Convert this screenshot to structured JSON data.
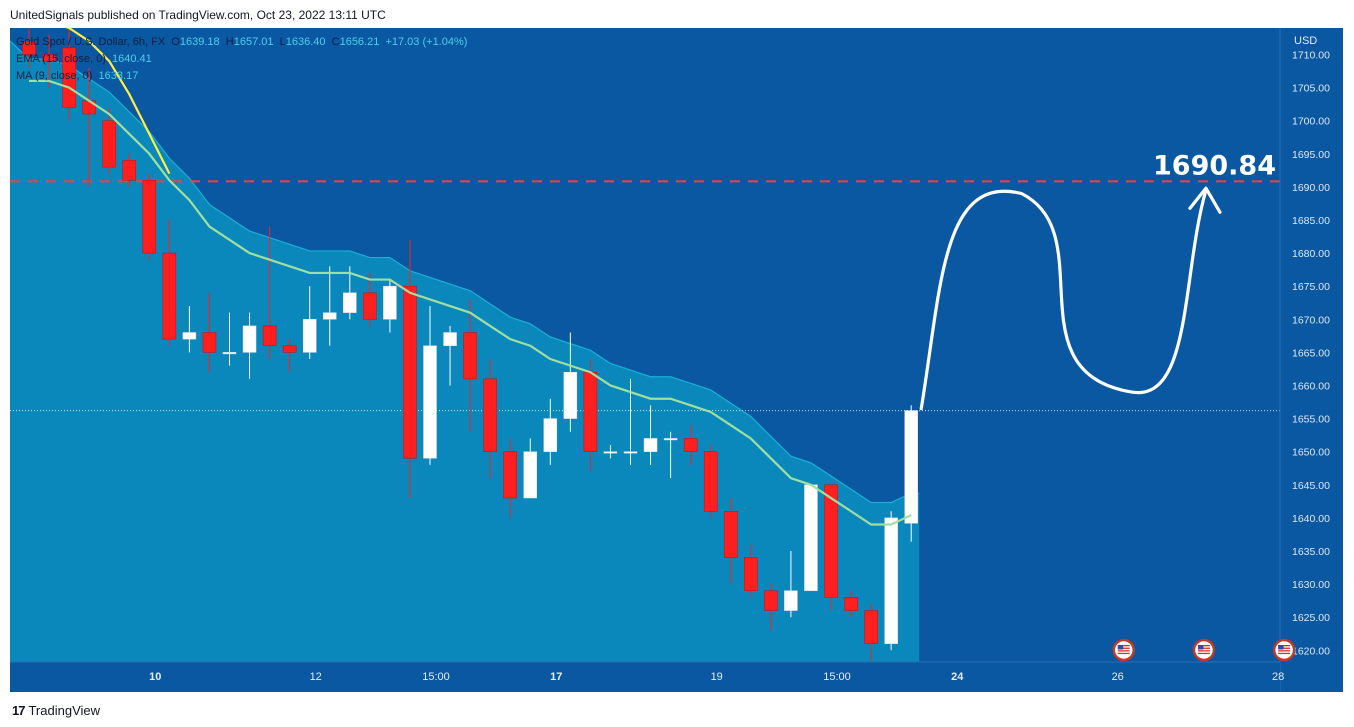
{
  "header": {
    "published_text": "UnitedSignals published on TradingView.com, Oct 23, 2022 13:11 UTC"
  },
  "legend": {
    "symbol": "Gold Spot / U.S. Dollar, 6h, FX",
    "o_label": "O",
    "o_value": "1639.18",
    "h_label": "H",
    "h_value": "1657.01",
    "l_label": "L",
    "l_value": "1636.40",
    "c_label": "C",
    "c_value": "1656.21",
    "change": "+17.03 (+1.04%)",
    "ema_label": "EMA (15, close, 0)",
    "ema_value": "1640.41",
    "ma_label": "MA (9, close, 0)",
    "ma_value": "1633.17"
  },
  "axis": {
    "currency": "USD"
  },
  "footer": {
    "brand": "TradingView",
    "logo_mark": "17"
  },
  "colors": {
    "background": "#0a57a2",
    "area_fill": "#0a8fc0",
    "bull": "#ffffff",
    "bear": "#ff1f1f",
    "ema": "#9fe0a0",
    "ma": "#ffee44",
    "target": "#ff3b3b"
  },
  "chart_data": {
    "type": "candlestick",
    "ylim": [
      1618,
      1714
    ],
    "y_ticks": [
      "1710.00",
      "1705.00",
      "1700.00",
      "1695.00",
      "1690.00",
      "1685.00",
      "1680.00",
      "1675.00",
      "1670.00",
      "1665.00",
      "1660.00",
      "1655.00",
      "1650.00",
      "1645.00",
      "1640.00",
      "1635.00",
      "1630.00",
      "1625.00",
      "1620.00"
    ],
    "x_ticks": [
      {
        "label": "10",
        "index": 6
      },
      {
        "label": "12",
        "index": 14
      },
      {
        "label": "15:00",
        "index": 20
      },
      {
        "label": "17",
        "index": 26
      },
      {
        "label": "19",
        "index": 34
      },
      {
        "label": "15:00",
        "index": 40
      },
      {
        "label": "24",
        "index": 46
      },
      {
        "label": "26",
        "index": 54
      },
      {
        "label": "28",
        "index": 62
      }
    ],
    "candles": [
      {
        "o": 1712,
        "h": 1714,
        "l": 1708,
        "c": 1710
      },
      {
        "o": 1710,
        "h": 1713,
        "l": 1705,
        "c": 1709
      },
      {
        "o": 1711,
        "h": 1714,
        "l": 1700,
        "c": 1702
      },
      {
        "o": 1703,
        "h": 1708,
        "l": 1690,
        "c": 1701
      },
      {
        "o": 1700,
        "h": 1702,
        "l": 1692,
        "c": 1693
      },
      {
        "o": 1694,
        "h": 1695,
        "l": 1690,
        "c": 1691
      },
      {
        "o": 1691,
        "h": 1692,
        "l": 1679,
        "c": 1680
      },
      {
        "o": 1680,
        "h": 1685,
        "l": 1666,
        "c": 1667
      },
      {
        "o": 1667,
        "h": 1672,
        "l": 1665,
        "c": 1668
      },
      {
        "o": 1668,
        "h": 1674,
        "l": 1662,
        "c": 1665
      },
      {
        "o": 1665,
        "h": 1671,
        "l": 1663,
        "c": 1665
      },
      {
        "o": 1665,
        "h": 1671,
        "l": 1661,
        "c": 1669
      },
      {
        "o": 1669,
        "h": 1684,
        "l": 1664,
        "c": 1666
      },
      {
        "o": 1666,
        "h": 1667,
        "l": 1662,
        "c": 1665
      },
      {
        "o": 1665,
        "h": 1675,
        "l": 1664,
        "c": 1670
      },
      {
        "o": 1670,
        "h": 1678,
        "l": 1666,
        "c": 1671
      },
      {
        "o": 1671,
        "h": 1678,
        "l": 1670,
        "c": 1674
      },
      {
        "o": 1674,
        "h": 1677,
        "l": 1669,
        "c": 1670
      },
      {
        "o": 1670,
        "h": 1676,
        "l": 1668,
        "c": 1675
      },
      {
        "o": 1675,
        "h": 1682,
        "l": 1643,
        "c": 1649
      },
      {
        "o": 1649,
        "h": 1672,
        "l": 1648,
        "c": 1666
      },
      {
        "o": 1666,
        "h": 1669,
        "l": 1660,
        "c": 1668
      },
      {
        "o": 1668,
        "h": 1673,
        "l": 1653,
        "c": 1661
      },
      {
        "o": 1661,
        "h": 1664,
        "l": 1646,
        "c": 1650
      },
      {
        "o": 1650,
        "h": 1652,
        "l": 1640,
        "c": 1643
      },
      {
        "o": 1643,
        "h": 1652,
        "l": 1643,
        "c": 1650
      },
      {
        "o": 1650,
        "h": 1658,
        "l": 1648,
        "c": 1655
      },
      {
        "o": 1655,
        "h": 1668,
        "l": 1653,
        "c": 1662
      },
      {
        "o": 1662,
        "h": 1664,
        "l": 1647,
        "c": 1650
      },
      {
        "o": 1650,
        "h": 1651,
        "l": 1649,
        "c": 1650
      },
      {
        "o": 1650,
        "h": 1661,
        "l": 1648,
        "c": 1650
      },
      {
        "o": 1650,
        "h": 1657,
        "l": 1648,
        "c": 1652
      },
      {
        "o": 1652,
        "h": 1653,
        "l": 1646,
        "c": 1652
      },
      {
        "o": 1652,
        "h": 1654,
        "l": 1648,
        "c": 1650
      },
      {
        "o": 1650,
        "h": 1651,
        "l": 1640,
        "c": 1641
      },
      {
        "o": 1641,
        "h": 1643,
        "l": 1630,
        "c": 1634
      },
      {
        "o": 1634,
        "h": 1636,
        "l": 1628,
        "c": 1629
      },
      {
        "o": 1629,
        "h": 1630,
        "l": 1623,
        "c": 1626
      },
      {
        "o": 1626,
        "h": 1635,
        "l": 1625,
        "c": 1629
      },
      {
        "o": 1629,
        "h": 1645,
        "l": 1629,
        "c": 1645
      },
      {
        "o": 1645,
        "h": 1645,
        "l": 1626,
        "c": 1628
      },
      {
        "o": 1628,
        "h": 1629,
        "l": 1625,
        "c": 1626
      },
      {
        "o": 1626,
        "h": 1627,
        "l": 1618,
        "c": 1621
      },
      {
        "o": 1621,
        "h": 1641,
        "l": 1620,
        "c": 1640
      },
      {
        "o": 1639.18,
        "h": 1657.01,
        "l": 1636.4,
        "c": 1656.21
      }
    ],
    "ema": [
      1706,
      1706,
      1705,
      1703,
      1701,
      1698,
      1695,
      1691,
      1688,
      1684,
      1682,
      1680,
      1679,
      1678,
      1677,
      1677,
      1677,
      1676,
      1676,
      1674,
      1673,
      1672,
      1671,
      1669,
      1667,
      1666,
      1664,
      1663,
      1662,
      1660,
      1659,
      1658,
      1658,
      1657,
      1656,
      1654,
      1652,
      1649,
      1646,
      1645,
      1643,
      1641,
      1639,
      1639,
      1640.41
    ],
    "ma": [
      1716,
      1715,
      1714,
      1712,
      1709,
      1704,
      1698,
      1692,
      1685,
      1679,
      1676,
      1672,
      1670,
      1669,
      1668,
      1668,
      1668,
      1669,
      1669,
      1669,
      1668,
      1668,
      1667,
      1664,
      1661,
      1659,
      1657,
      1655,
      1654,
      1653,
      1652,
      1652,
      1652,
      1651,
      1650,
      1648,
      1645,
      1641,
      1639,
      1638,
      1636,
      1631,
      1631,
      1631,
      1633.17
    ],
    "current_price": "1656.21",
    "target_price": "1690.84",
    "target_label": "1690.84",
    "projection_path": [
      {
        "i": 44.5,
        "y": 1656.5
      },
      {
        "i": 46,
        "y": 1673
      },
      {
        "i": 49.5,
        "y": 1689
      },
      {
        "i": 55,
        "y": 1659
      },
      {
        "i": 58.5,
        "y": 1686
      },
      {
        "i": 58.7,
        "y": 1689.5
      }
    ],
    "events": [
      {
        "index": 54.6
      },
      {
        "index": 58.6
      },
      {
        "index": 62.6
      }
    ],
    "event_icon": "us-flag-icon"
  }
}
